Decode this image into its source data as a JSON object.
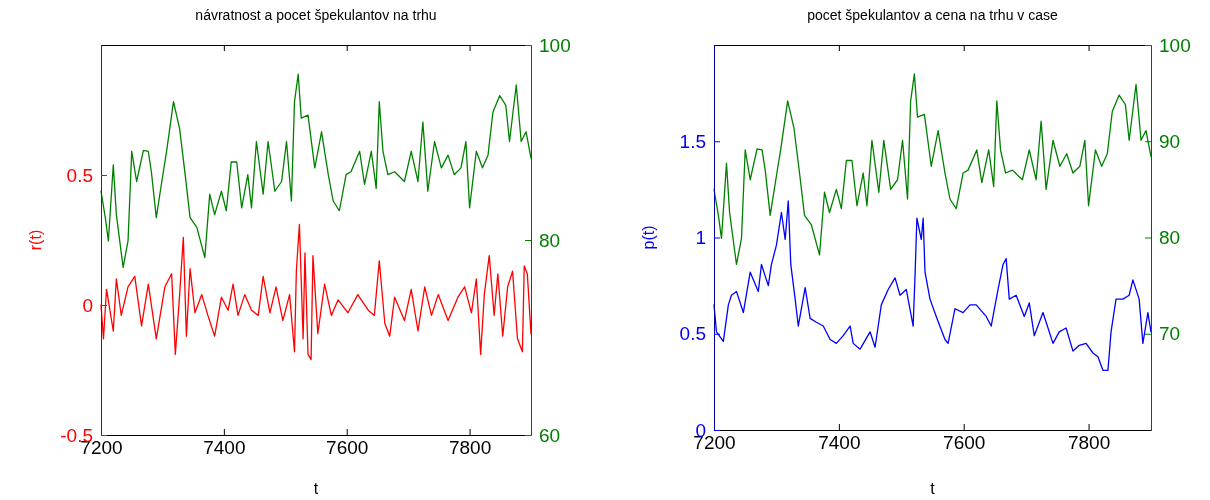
{
  "chart_data": [
    {
      "type": "line",
      "title": "návratnost a pocet špekulantov na trhu",
      "xlabel": "t",
      "ylabel": "r(t)",
      "xlim": [
        7200,
        7900
      ],
      "xticks": [
        7200,
        7400,
        7600,
        7800
      ],
      "ylim": [
        -0.5,
        1
      ],
      "yticks": [
        -0.5,
        0,
        0.5
      ],
      "y2lim": [
        60,
        100
      ],
      "y2ticks": [
        60,
        80,
        100
      ],
      "grid": false,
      "series": [
        {
          "color": "#ff0000",
          "x": [
            7200,
            7204,
            7209,
            7220,
            7225,
            7233,
            7244,
            7255,
            7266,
            7277,
            7290,
            7304,
            7315,
            7321,
            7328,
            7334,
            7339,
            7345,
            7353,
            7364,
            7374,
            7385,
            7396,
            7407,
            7415,
            7423,
            7434,
            7445,
            7456,
            7464,
            7475,
            7485,
            7496,
            7507,
            7515,
            7518,
            7523,
            7529,
            7532,
            7537,
            7542,
            7545,
            7553,
            7564,
            7575,
            7586,
            7602,
            7618,
            7635,
            7645,
            7653,
            7662,
            7670,
            7678,
            7694,
            7705,
            7716,
            7727,
            7738,
            7749,
            7765,
            7781,
            7792,
            7803,
            7811,
            7818,
            7824,
            7832,
            7840,
            7846,
            7854,
            7862,
            7870,
            7878,
            7886,
            7889,
            7894,
            7900
          ],
          "values": [
            0,
            -0.13,
            0.06,
            -0.1,
            0.1,
            -0.04,
            0.07,
            0.11,
            -0.08,
            0.08,
            -0.13,
            0.07,
            0.12,
            -0.19,
            0.04,
            0.26,
            -0.12,
            0.14,
            -0.03,
            0.04,
            -0.04,
            -0.12,
            0.03,
            -0.02,
            0.08,
            -0.04,
            0.04,
            -0.02,
            -0.04,
            0.11,
            -0.03,
            0.07,
            -0.06,
            0.04,
            -0.18,
            0.13,
            0.31,
            -0.13,
            0.2,
            -0.19,
            -0.21,
            0.19,
            -0.11,
            0.08,
            -0.04,
            0.02,
            -0.03,
            0.04,
            -0.02,
            -0.04,
            0.17,
            -0.07,
            -0.12,
            0.03,
            -0.06,
            0.06,
            -0.1,
            0.07,
            -0.04,
            0.04,
            -0.06,
            0.03,
            0.07,
            -0.03,
            0.1,
            -0.19,
            0.04,
            0.19,
            -0.04,
            0.12,
            -0.12,
            0.07,
            0.13,
            -0.13,
            -0.18,
            0.15,
            0.12,
            -0.11
          ]
        },
        {
          "color": "#008000",
          "axis": "y2",
          "x": [
            7200,
            7207,
            7212,
            7220,
            7225,
            7236,
            7244,
            7250,
            7258,
            7269,
            7277,
            7282,
            7290,
            7299,
            7307,
            7318,
            7328,
            7337,
            7345,
            7356,
            7369,
            7377,
            7385,
            7396,
            7404,
            7412,
            7421,
            7429,
            7439,
            7445,
            7453,
            7464,
            7472,
            7483,
            7494,
            7502,
            7510,
            7515,
            7521,
            7526,
            7537,
            7548,
            7559,
            7570,
            7578,
            7588,
            7599,
            7607,
            7621,
            7629,
            7640,
            7648,
            7653,
            7659,
            7667,
            7678,
            7694,
            7705,
            7716,
            7724,
            7732,
            7743,
            7754,
            7765,
            7775,
            7786,
            7794,
            7800,
            7811,
            7821,
            7830,
            7838,
            7849,
            7859,
            7865,
            7876,
            7884,
            7892,
            7900
          ],
          "values": [
            85.0,
            82.3,
            79.9,
            87.7,
            82.6,
            77.2,
            79.9,
            89.1,
            86.0,
            89.2,
            89.1,
            87.0,
            82.3,
            86.0,
            89.2,
            94.2,
            91.4,
            86.7,
            82.3,
            81.3,
            78.2,
            84.7,
            82.6,
            85.0,
            83.0,
            88.0,
            88.0,
            83.3,
            86.7,
            83.3,
            90.1,
            84.7,
            90.1,
            85.0,
            86.0,
            90.1,
            84.0,
            94.2,
            97.0,
            92.5,
            92.8,
            87.4,
            91.1,
            86.7,
            84.0,
            83.0,
            86.7,
            87.0,
            89.1,
            85.7,
            89.1,
            85.3,
            94.2,
            89.1,
            86.7,
            87.0,
            86.0,
            89.1,
            86.0,
            92.1,
            85.0,
            90.1,
            87.4,
            88.7,
            86.7,
            87.4,
            90.1,
            83.3,
            89.1,
            87.4,
            88.7,
            93.1,
            94.8,
            93.8,
            90.1,
            95.9,
            90.1,
            91.1,
            88.4
          ]
        }
      ]
    },
    {
      "type": "line",
      "title": "pocet špekulantov a cena na trhu v case",
      "xlabel": "t",
      "ylabel": "p(t)",
      "xlim": [
        7200,
        7900
      ],
      "xticks": [
        7200,
        7400,
        7600,
        7800
      ],
      "ylim": [
        0,
        2
      ],
      "yticks": [
        0,
        0.5,
        1,
        1.5
      ],
      "y2lim": [
        60,
        100
      ],
      "y2ticks": [
        70,
        80,
        90,
        100
      ],
      "grid": false,
      "series": [
        {
          "color": "#0000ff",
          "x": [
            7200,
            7204,
            7215,
            7223,
            7228,
            7236,
            7247,
            7258,
            7271,
            7276,
            7287,
            7292,
            7300,
            7308,
            7314,
            7319,
            7323,
            7330,
            7335,
            7346,
            7354,
            7364,
            7375,
            7386,
            7396,
            7407,
            7418,
            7423,
            7434,
            7450,
            7458,
            7468,
            7479,
            7490,
            7498,
            7508,
            7519,
            7522,
            7525,
            7532,
            7535,
            7538,
            7546,
            7556,
            7570,
            7575,
            7586,
            7599,
            7610,
            7620,
            7636,
            7644,
            7655,
            7663,
            7668,
            7673,
            7684,
            7697,
            7705,
            7713,
            7727,
            7743,
            7753,
            7764,
            7775,
            7785,
            7796,
            7807,
            7815,
            7823,
            7831,
            7836,
            7844,
            7855,
            7865,
            7871,
            7881,
            7887,
            7895,
            7900
          ],
          "values": [
            0.65,
            0.51,
            0.46,
            0.65,
            0.7,
            0.72,
            0.61,
            0.82,
            0.72,
            0.86,
            0.75,
            0.86,
            0.96,
            1.13,
            0.99,
            1.19,
            0.86,
            0.68,
            0.54,
            0.74,
            0.58,
            0.56,
            0.54,
            0.47,
            0.45,
            0.49,
            0.54,
            0.45,
            0.42,
            0.51,
            0.43,
            0.65,
            0.73,
            0.79,
            0.7,
            0.73,
            0.54,
            0.8,
            1.1,
            0.99,
            1.1,
            0.82,
            0.68,
            0.59,
            0.47,
            0.45,
            0.63,
            0.61,
            0.65,
            0.65,
            0.59,
            0.54,
            0.73,
            0.86,
            0.89,
            0.68,
            0.7,
            0.59,
            0.66,
            0.49,
            0.61,
            0.45,
            0.51,
            0.53,
            0.41,
            0.44,
            0.45,
            0.4,
            0.38,
            0.31,
            0.31,
            0.51,
            0.68,
            0.68,
            0.7,
            0.78,
            0.68,
            0.45,
            0.61,
            0.51
          ]
        },
        {
          "color": "#008000",
          "axis": "y2",
          "x": [
            7200,
            7207,
            7212,
            7220,
            7225,
            7236,
            7244,
            7250,
            7258,
            7269,
            7277,
            7282,
            7290,
            7299,
            7307,
            7318,
            7328,
            7337,
            7345,
            7356,
            7369,
            7377,
            7385,
            7396,
            7404,
            7412,
            7421,
            7429,
            7439,
            7445,
            7453,
            7464,
            7472,
            7483,
            7494,
            7502,
            7510,
            7515,
            7521,
            7526,
            7537,
            7548,
            7559,
            7570,
            7578,
            7588,
            7599,
            7607,
            7621,
            7629,
            7640,
            7648,
            7653,
            7659,
            7667,
            7678,
            7694,
            7705,
            7716,
            7724,
            7732,
            7743,
            7754,
            7765,
            7775,
            7786,
            7794,
            7800,
            7811,
            7821,
            7830,
            7838,
            7849,
            7859,
            7865,
            7876,
            7884,
            7892,
            7900
          ],
          "values": [
            85.0,
            82.3,
            79.9,
            87.7,
            82.6,
            77.2,
            79.9,
            89.1,
            86.0,
            89.2,
            89.1,
            87.0,
            82.3,
            86.0,
            89.2,
            94.2,
            91.4,
            86.7,
            82.3,
            81.3,
            78.2,
            84.7,
            82.6,
            85.0,
            83.0,
            88.0,
            88.0,
            83.3,
            86.7,
            83.3,
            90.1,
            84.7,
            90.1,
            85.0,
            86.0,
            90.1,
            84.0,
            94.2,
            97.0,
            92.5,
            92.8,
            87.4,
            91.1,
            86.7,
            84.0,
            83.0,
            86.7,
            87.0,
            89.1,
            85.7,
            89.1,
            85.3,
            94.2,
            89.1,
            86.7,
            87.0,
            86.0,
            89.1,
            86.0,
            92.1,
            85.0,
            90.1,
            87.4,
            88.7,
            86.7,
            87.4,
            90.1,
            83.3,
            89.1,
            87.4,
            88.7,
            93.1,
            94.8,
            93.8,
            90.1,
            95.9,
            90.1,
            91.1,
            88.4
          ]
        }
      ]
    }
  ]
}
